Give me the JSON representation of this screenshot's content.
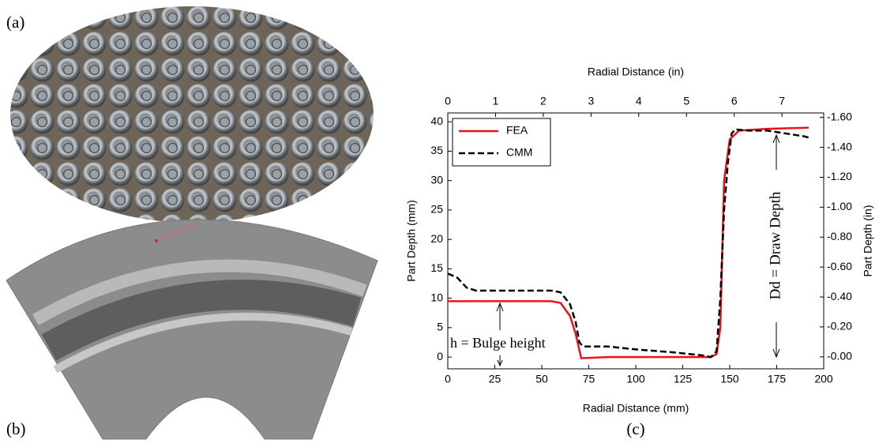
{
  "figure": {
    "panel_labels": [
      "(a)",
      "(b)",
      "(c)"
    ]
  },
  "chart_data": {
    "type": "line",
    "xlabel": "Radial Distance (mm)",
    "x2label": "Radial Distance (in)",
    "ylabel": "Part Depth (mm)",
    "y2label": "Part Depth (in)",
    "xlim": [
      0,
      200
    ],
    "xticks": [
      0,
      25,
      50,
      75,
      100,
      125,
      150,
      175,
      200
    ],
    "x2lim": [
      0,
      7.874
    ],
    "x2ticks": [
      0,
      1,
      2,
      3,
      4,
      5,
      6,
      7
    ],
    "ylim": [
      -2,
      41.5
    ],
    "yticks": [
      0,
      5,
      10,
      15,
      20,
      25,
      30,
      35,
      40
    ],
    "y2lim": [
      0.08,
      -1.63
    ],
    "y2ticks": [
      {
        "value": 0,
        "label": "-0.00"
      },
      {
        "value": -0.2,
        "label": "-0.20"
      },
      {
        "value": -0.4,
        "label": "-0.40"
      },
      {
        "value": -0.6,
        "label": "-0.60"
      },
      {
        "value": -0.8,
        "label": "-0.80"
      },
      {
        "value": -1.0,
        "label": "-1.00"
      },
      {
        "value": -1.2,
        "label": "-1.20"
      },
      {
        "value": -1.4,
        "label": "-1.40"
      },
      {
        "value": -1.6,
        "label": "-1.60"
      }
    ],
    "legend": "upper left",
    "series": [
      {
        "name": "FEA",
        "color": "#e8141c",
        "linestyle": "solid",
        "x": [
          0,
          55,
          60,
          65,
          68,
          71,
          85,
          100,
          120,
          140,
          143,
          145,
          147,
          150,
          155,
          170,
          192
        ],
        "values": [
          9.5,
          9.5,
          9.2,
          7,
          4,
          -0.2,
          0,
          0,
          0,
          0,
          0.5,
          5,
          30,
          37,
          38.5,
          38.8,
          39
        ]
      },
      {
        "name": "CMM",
        "color": "#000000",
        "linestyle": "dashed",
        "x": [
          0,
          5,
          10,
          15,
          55,
          60,
          65,
          68,
          70,
          72,
          85,
          100,
          120,
          135,
          140,
          143,
          145,
          147,
          149,
          151,
          153,
          160,
          170,
          180,
          190,
          192
        ],
        "values": [
          14.2,
          13.5,
          11.8,
          11.3,
          11.3,
          11,
          9,
          6,
          2.5,
          1.8,
          1.8,
          1.3,
          0.8,
          0.3,
          0,
          1,
          10,
          25,
          33,
          38,
          38.7,
          38.5,
          38.5,
          38,
          37.5,
          37.3
        ]
      }
    ],
    "annotations": [
      "h = Bulge height",
      "Dd = Draw Depth"
    ]
  }
}
